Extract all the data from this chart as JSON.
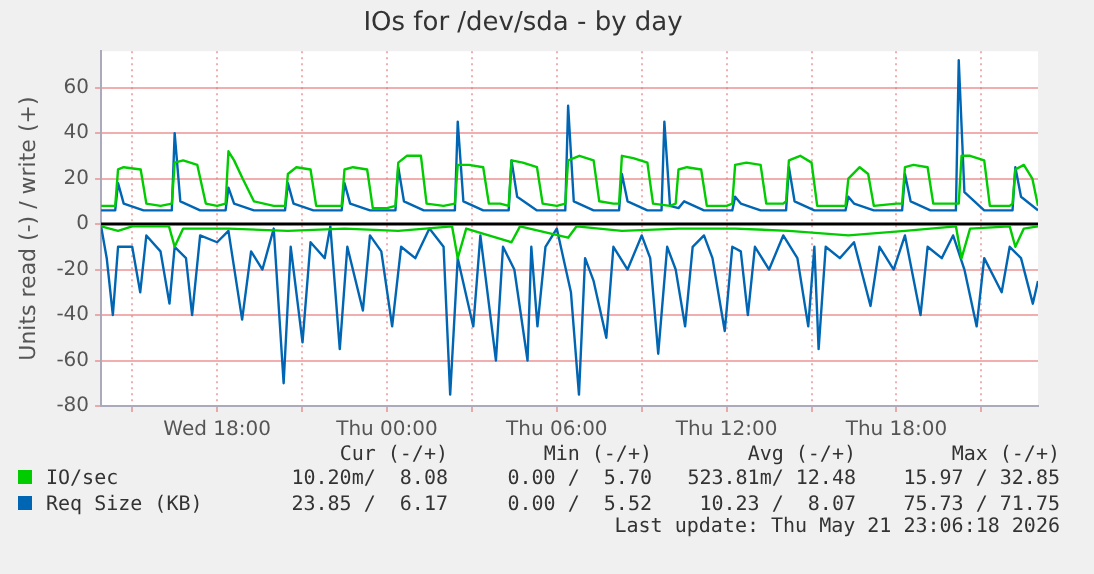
{
  "chart_data": {
    "type": "line",
    "title": "IOs for /dev/sda - by day",
    "ylabel": "Units read (-) / write (+)",
    "xlim": [
      "2026-05-20T13:54",
      "2026-05-21T23:00"
    ],
    "ylim": [
      -80,
      76
    ],
    "xticks": [
      {
        "value": "2026-05-20T15:00",
        "label": null
      },
      {
        "value": "2026-05-20T18:00",
        "label": "Wed 18:00"
      },
      {
        "value": "2026-05-20T21:00",
        "label": null
      },
      {
        "value": "2026-05-21T00:00",
        "label": "Thu 00:00"
      },
      {
        "value": "2026-05-21T03:00",
        "label": null
      },
      {
        "value": "2026-05-21T06:00",
        "label": "Thu 06:00"
      },
      {
        "value": "2026-05-21T09:00",
        "label": null
      },
      {
        "value": "2026-05-21T12:00",
        "label": "Thu 12:00"
      },
      {
        "value": "2026-05-21T15:00",
        "label": null
      },
      {
        "value": "2026-05-21T18:00",
        "label": "Thu 18:00"
      },
      {
        "value": "2026-05-21T21:00",
        "label": null
      }
    ],
    "yticks": [
      -80,
      -60,
      -40,
      -20,
      0,
      20,
      40,
      60
    ],
    "grid": true,
    "legend": "bottom",
    "marker": "none",
    "line_style": "solid",
    "ref_lines": [
      {
        "axis": "y",
        "value": 0,
        "color": "#000000"
      }
    ],
    "series": [
      {
        "name": "IO/sec",
        "color": "#00cc00",
        "x": [
          "2026-05-20T13:54",
          "2026-05-20T14:24",
          "2026-05-20T14:30",
          "2026-05-20T14:42",
          "2026-05-20T15:18",
          "2026-05-20T15:30",
          "2026-05-20T16:00",
          "2026-05-20T16:24",
          "2026-05-20T16:30",
          "2026-05-20T16:48",
          "2026-05-20T17:18",
          "2026-05-20T17:36",
          "2026-05-20T18:00",
          "2026-05-20T18:18",
          "2026-05-20T18:24",
          "2026-05-20T18:36",
          "2026-05-20T18:54",
          "2026-05-20T19:18",
          "2026-05-20T20:00",
          "2026-05-20T20:24",
          "2026-05-20T20:30",
          "2026-05-20T20:48",
          "2026-05-20T21:18",
          "2026-05-20T21:30",
          "2026-05-20T22:00",
          "2026-05-20T22:24",
          "2026-05-20T22:30",
          "2026-05-20T22:48",
          "2026-05-20T23:18",
          "2026-05-20T23:30",
          "2026-05-21T00:00",
          "2026-05-21T00:18",
          "2026-05-21T00:24",
          "2026-05-21T00:42",
          "2026-05-21T01:12",
          "2026-05-21T01:24",
          "2026-05-21T02:00",
          "2026-05-21T02:24",
          "2026-05-21T02:30",
          "2026-05-21T02:54",
          "2026-05-21T03:24",
          "2026-05-21T03:36",
          "2026-05-21T04:00",
          "2026-05-21T04:18",
          "2026-05-21T04:24",
          "2026-05-21T04:48",
          "2026-05-21T05:18",
          "2026-05-21T05:30",
          "2026-05-21T06:00",
          "2026-05-21T06:18",
          "2026-05-21T06:24",
          "2026-05-21T06:48",
          "2026-05-21T07:18",
          "2026-05-21T07:30",
          "2026-05-21T08:00",
          "2026-05-21T08:12",
          "2026-05-21T08:18",
          "2026-05-21T08:42",
          "2026-05-21T09:12",
          "2026-05-21T09:24",
          "2026-05-21T10:00",
          "2026-05-21T10:12",
          "2026-05-21T10:18",
          "2026-05-21T10:36",
          "2026-05-21T11:06",
          "2026-05-21T11:18",
          "2026-05-21T12:00",
          "2026-05-21T12:12",
          "2026-05-21T12:18",
          "2026-05-21T12:42",
          "2026-05-21T13:12",
          "2026-05-21T13:24",
          "2026-05-21T14:00",
          "2026-05-21T14:06",
          "2026-05-21T14:12",
          "2026-05-21T14:36",
          "2026-05-21T15:00",
          "2026-05-21T15:12",
          "2026-05-21T16:00",
          "2026-05-21T16:12",
          "2026-05-21T16:18",
          "2026-05-21T16:42",
          "2026-05-21T17:00",
          "2026-05-21T17:12",
          "2026-05-21T18:00",
          "2026-05-21T18:12",
          "2026-05-21T18:18",
          "2026-05-21T18:36",
          "2026-05-21T19:06",
          "2026-05-21T19:18",
          "2026-05-21T20:00",
          "2026-05-21T20:12",
          "2026-05-21T20:18",
          "2026-05-21T20:36",
          "2026-05-21T21:06",
          "2026-05-21T21:18",
          "2026-05-21T22:00",
          "2026-05-21T22:06",
          "2026-05-21T22:12",
          "2026-05-21T22:30",
          "2026-05-21T22:48",
          "2026-05-21T23:00"
        ],
        "values": [
          8,
          8,
          24,
          25,
          24,
          9,
          8,
          9,
          27,
          28,
          26,
          9,
          8,
          9,
          32,
          28,
          20,
          10,
          8,
          8,
          22,
          25,
          24,
          8,
          8,
          8,
          24,
          25,
          24,
          7,
          7,
          8,
          27,
          30,
          30,
          9,
          8,
          9,
          26,
          26,
          25,
          9,
          9,
          8,
          28,
          27,
          25,
          9,
          8,
          9,
          28,
          30,
          28,
          10,
          9,
          9,
          30,
          29,
          27,
          9,
          8,
          9,
          24,
          25,
          24,
          8,
          8,
          9,
          26,
          27,
          26,
          9,
          9,
          10,
          28,
          30,
          27,
          8,
          8,
          8,
          20,
          25,
          22,
          8,
          9,
          9,
          25,
          26,
          25,
          9,
          9,
          9,
          30,
          30,
          28,
          8,
          8,
          9,
          24,
          26,
          20,
          8
        ]
      },
      {
        "color": "#00cc00",
        "x": [
          "2026-05-20T13:54",
          "2026-05-20T14:30",
          "2026-05-20T15:00",
          "2026-05-20T16:18",
          "2026-05-20T16:30",
          "2026-05-20T16:48",
          "2026-05-20T18:24",
          "2026-05-20T20:30",
          "2026-05-20T22:30",
          "2026-05-21T00:24",
          "2026-05-21T02:18",
          "2026-05-21T02:30",
          "2026-05-21T02:48",
          "2026-05-21T04:24",
          "2026-05-21T04:42",
          "2026-05-21T06:24",
          "2026-05-21T06:42",
          "2026-05-21T08:18",
          "2026-05-21T10:18",
          "2026-05-21T12:18",
          "2026-05-21T14:12",
          "2026-05-21T16:18",
          "2026-05-21T18:18",
          "2026-05-21T20:06",
          "2026-05-21T20:18",
          "2026-05-21T20:36",
          "2026-05-21T22:00",
          "2026-05-21T22:12",
          "2026-05-21T22:30",
          "2026-05-21T23:00"
        ],
        "values": [
          -1,
          -3,
          -1,
          -1,
          -10,
          -2,
          -2,
          -3,
          -2,
          -3,
          -1,
          -15,
          -2,
          -8,
          -1,
          -6,
          -1,
          -3,
          -2,
          -2,
          -3,
          -5,
          -3,
          -1,
          -15,
          -2,
          -1,
          -10,
          -2,
          -1
        ]
      },
      {
        "name": "Req Size (KB)",
        "color": "#0066b3",
        "x": [
          "2026-05-20T13:54",
          "2026-05-20T14:24",
          "2026-05-20T14:30",
          "2026-05-20T14:42",
          "2026-05-20T15:24",
          "2026-05-20T16:24",
          "2026-05-20T16:30",
          "2026-05-20T16:42",
          "2026-05-20T17:24",
          "2026-05-20T18:18",
          "2026-05-20T18:24",
          "2026-05-20T18:36",
          "2026-05-20T19:18",
          "2026-05-20T20:24",
          "2026-05-20T20:30",
          "2026-05-20T20:42",
          "2026-05-20T21:24",
          "2026-05-20T22:24",
          "2026-05-20T22:30",
          "2026-05-20T22:42",
          "2026-05-20T23:24",
          "2026-05-21T00:18",
          "2026-05-21T00:24",
          "2026-05-21T00:36",
          "2026-05-21T01:18",
          "2026-05-21T02:24",
          "2026-05-21T02:30",
          "2026-05-21T02:42",
          "2026-05-21T03:24",
          "2026-05-21T04:18",
          "2026-05-21T04:24",
          "2026-05-21T04:36",
          "2026-05-21T05:18",
          "2026-05-21T06:18",
          "2026-05-21T06:24",
          "2026-05-21T06:36",
          "2026-05-21T07:18",
          "2026-05-21T08:12",
          "2026-05-21T08:18",
          "2026-05-21T08:30",
          "2026-05-21T09:12",
          "2026-05-21T09:42",
          "2026-05-21T09:48",
          "2026-05-21T10:00",
          "2026-05-21T10:18",
          "2026-05-21T10:30",
          "2026-05-21T11:12",
          "2026-05-21T12:12",
          "2026-05-21T12:18",
          "2026-05-21T12:30",
          "2026-05-21T13:12",
          "2026-05-21T14:06",
          "2026-05-21T14:12",
          "2026-05-21T14:24",
          "2026-05-21T15:06",
          "2026-05-21T16:12",
          "2026-05-21T16:18",
          "2026-05-21T16:30",
          "2026-05-21T17:12",
          "2026-05-21T18:12",
          "2026-05-21T18:18",
          "2026-05-21T18:30",
          "2026-05-21T19:12",
          "2026-05-21T20:06",
          "2026-05-21T20:12",
          "2026-05-21T20:24",
          "2026-05-21T21:06",
          "2026-05-21T22:06",
          "2026-05-21T22:12",
          "2026-05-21T22:24",
          "2026-05-21T23:00"
        ],
        "values": [
          6,
          6,
          18,
          9,
          6,
          6,
          40,
          10,
          6,
          6,
          16,
          9,
          6,
          6,
          18,
          9,
          6,
          6,
          18,
          9,
          6,
          6,
          25,
          10,
          6,
          6,
          45,
          10,
          6,
          6,
          28,
          12,
          6,
          6,
          52,
          10,
          6,
          6,
          22,
          10,
          6,
          6,
          45,
          8,
          7,
          10,
          6,
          6,
          12,
          9,
          6,
          6,
          25,
          10,
          6,
          6,
          12,
          9,
          6,
          6,
          22,
          10,
          6,
          6,
          72,
          14,
          6,
          6,
          25,
          12,
          6
        ]
      },
      {
        "color": "#0066b3",
        "x": [
          "2026-05-20T13:54",
          "2026-05-20T14:06",
          "2026-05-20T14:19",
          "2026-05-20T14:30",
          "2026-05-20T15:00",
          "2026-05-20T15:17",
          "2026-05-20T15:30",
          "2026-05-20T16:00",
          "2026-05-20T16:19",
          "2026-05-20T16:30",
          "2026-05-20T16:54",
          "2026-05-20T17:07",
          "2026-05-20T17:24",
          "2026-05-20T18:00",
          "2026-05-20T18:24",
          "2026-05-20T18:53",
          "2026-05-20T19:12",
          "2026-05-20T19:36",
          "2026-05-20T20:00",
          "2026-05-20T20:21",
          "2026-05-20T20:36",
          "2026-05-20T21:01",
          "2026-05-20T21:18",
          "2026-05-20T21:48",
          "2026-05-20T22:00",
          "2026-05-20T22:20",
          "2026-05-20T22:36",
          "2026-05-20T23:09",
          "2026-05-20T23:24",
          "2026-05-20T23:48",
          "2026-05-21T00:11",
          "2026-05-21T00:30",
          "2026-05-21T01:00",
          "2026-05-21T01:30",
          "2026-05-21T02:00",
          "2026-05-21T02:14",
          "2026-05-21T02:30",
          "2026-05-21T03:03",
          "2026-05-21T03:18",
          "2026-05-21T03:51",
          "2026-05-21T04:06",
          "2026-05-21T04:30",
          "2026-05-21T04:58",
          "2026-05-21T05:06",
          "2026-05-21T05:19",
          "2026-05-21T05:36",
          "2026-05-21T06:00",
          "2026-05-21T06:30",
          "2026-05-21T06:47",
          "2026-05-21T07:00",
          "2026-05-21T07:18",
          "2026-05-21T07:45",
          "2026-05-21T08:00",
          "2026-05-21T08:30",
          "2026-05-21T09:00",
          "2026-05-21T09:18",
          "2026-05-21T09:35",
          "2026-05-21T09:54",
          "2026-05-21T10:12",
          "2026-05-21T10:32",
          "2026-05-21T10:48",
          "2026-05-21T11:12",
          "2026-05-21T11:30",
          "2026-05-21T11:56",
          "2026-05-21T12:12",
          "2026-05-21T12:30",
          "2026-05-21T12:45",
          "2026-05-21T13:00",
          "2026-05-21T13:30",
          "2026-05-21T14:00",
          "2026-05-21T14:30",
          "2026-05-21T14:53",
          "2026-05-21T15:06",
          "2026-05-21T15:15",
          "2026-05-21T15:30",
          "2026-05-21T16:00",
          "2026-05-21T16:30",
          "2026-05-21T17:05",
          "2026-05-21T17:24",
          "2026-05-21T17:54",
          "2026-05-21T18:18",
          "2026-05-21T18:51",
          "2026-05-21T19:06",
          "2026-05-21T19:36",
          "2026-05-21T20:00",
          "2026-05-21T20:24",
          "2026-05-21T20:50",
          "2026-05-21T21:06",
          "2026-05-21T21:43",
          "2026-05-21T22:00",
          "2026-05-21T22:24",
          "2026-05-21T22:49",
          "2026-05-21T23:00"
        ],
        "values": [
          -1,
          -15,
          -40,
          -10,
          -10,
          -30,
          -5,
          -12,
          -35,
          -10,
          -15,
          -40,
          -5,
          -8,
          -3,
          -42,
          -12,
          -20,
          -2,
          -70,
          -10,
          -52,
          -8,
          -15,
          -1,
          -55,
          -10,
          -38,
          -5,
          -12,
          -45,
          -10,
          -15,
          -2,
          -10,
          -75,
          -15,
          -45,
          -5,
          -60,
          -10,
          -20,
          -60,
          -10,
          -45,
          -10,
          -2,
          -30,
          -75,
          -15,
          -25,
          -50,
          -10,
          -20,
          -5,
          -15,
          -57,
          -10,
          -20,
          -45,
          -10,
          -5,
          -15,
          -47,
          -10,
          -12,
          -40,
          -10,
          -20,
          -5,
          -15,
          -45,
          -10,
          -55,
          -10,
          -15,
          -8,
          -36,
          -10,
          -20,
          -5,
          -40,
          -10,
          -15,
          -5,
          -20,
          -45,
          -15,
          -30,
          -10,
          -15,
          -35,
          -25
        ]
      }
    ],
    "annotations": [
      "Cur (-/+)",
      "Min (-/+)",
      "Avg (-/+)",
      "Max (-/+)",
      "10.20m/  8.08",
      "0.00 /  5.70",
      "523.81m/ 12.48",
      "15.97 / 32.85",
      "23.85 /  6.17",
      "0.00 /  5.52",
      "10.23 /  8.07",
      "75.73 / 71.75",
      "Last update: Thu May 21 23:06:18 2026"
    ]
  }
}
